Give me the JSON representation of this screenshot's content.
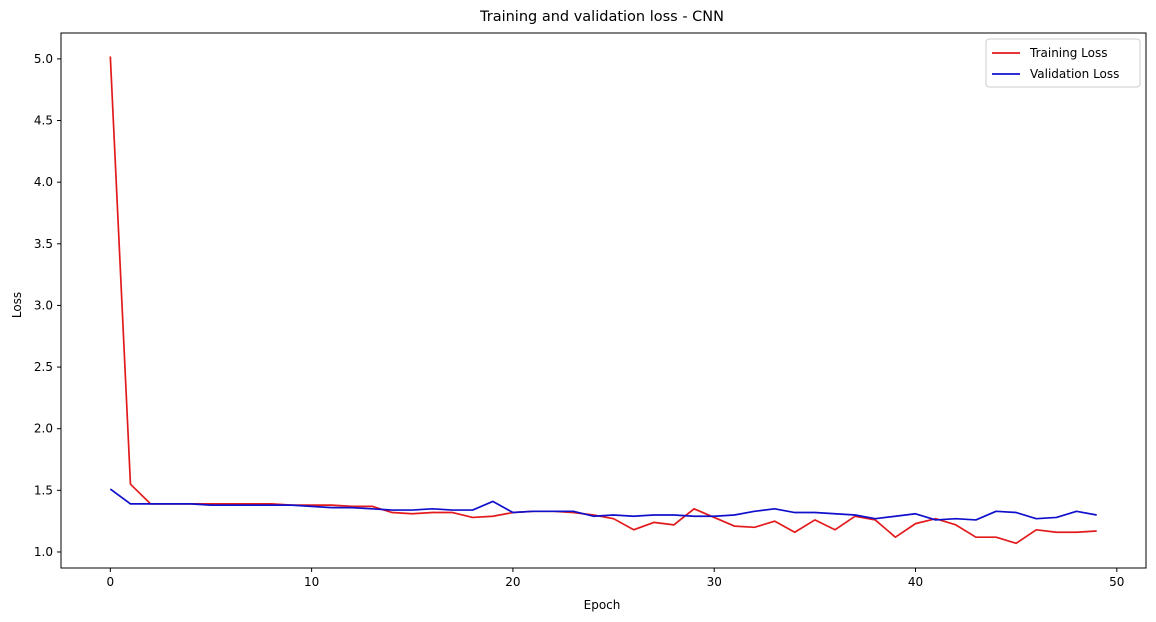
{
  "chart_data": {
    "type": "line",
    "title": "Training and validation loss - CNN",
    "xlabel": "Epoch",
    "ylabel": "Loss",
    "xlim": [
      -2.45,
      51.45
    ],
    "ylim": [
      0.87,
      5.21
    ],
    "xticks": [
      0,
      10,
      20,
      30,
      40,
      50
    ],
    "yticks": [
      1.0,
      1.5,
      2.0,
      2.5,
      3.0,
      3.5,
      4.0,
      4.5,
      5.0
    ],
    "grid": false,
    "legend": "top-right",
    "x": [
      0,
      1,
      2,
      3,
      4,
      5,
      6,
      7,
      8,
      9,
      10,
      11,
      12,
      13,
      14,
      15,
      16,
      17,
      18,
      19,
      20,
      21,
      22,
      23,
      24,
      25,
      26,
      27,
      28,
      29,
      30,
      31,
      32,
      33,
      34,
      35,
      36,
      37,
      38,
      39,
      40,
      41,
      42,
      43,
      44,
      45,
      46,
      47,
      48,
      49
    ],
    "series": [
      {
        "name": "Training Loss",
        "color": "#e31a1c",
        "values": [
          5.02,
          1.55,
          1.39,
          1.39,
          1.39,
          1.39,
          1.39,
          1.39,
          1.39,
          1.38,
          1.38,
          1.38,
          1.37,
          1.37,
          1.32,
          1.31,
          1.32,
          1.32,
          1.28,
          1.29,
          1.32,
          1.33,
          1.33,
          1.32,
          1.3,
          1.27,
          1.18,
          1.24,
          1.22,
          1.35,
          1.28,
          1.21,
          1.2,
          1.25,
          1.16,
          1.26,
          1.18,
          1.29,
          1.26,
          1.12,
          1.23,
          1.27,
          1.22,
          1.12,
          1.12,
          1.07,
          1.18,
          1.16,
          1.16,
          1.17
        ]
      },
      {
        "name": "Validation Loss",
        "color": "#1010cc",
        "values": [
          1.51,
          1.39,
          1.39,
          1.39,
          1.39,
          1.38,
          1.38,
          1.38,
          1.38,
          1.38,
          1.37,
          1.36,
          1.36,
          1.35,
          1.34,
          1.34,
          1.35,
          1.34,
          1.34,
          1.41,
          1.32,
          1.33,
          1.33,
          1.33,
          1.29,
          1.3,
          1.29,
          1.3,
          1.3,
          1.29,
          1.29,
          1.3,
          1.33,
          1.35,
          1.32,
          1.32,
          1.31,
          1.3,
          1.27,
          1.29,
          1.31,
          1.26,
          1.27,
          1.26,
          1.33,
          1.32,
          1.27,
          1.28,
          1.33,
          1.3
        ]
      }
    ]
  }
}
